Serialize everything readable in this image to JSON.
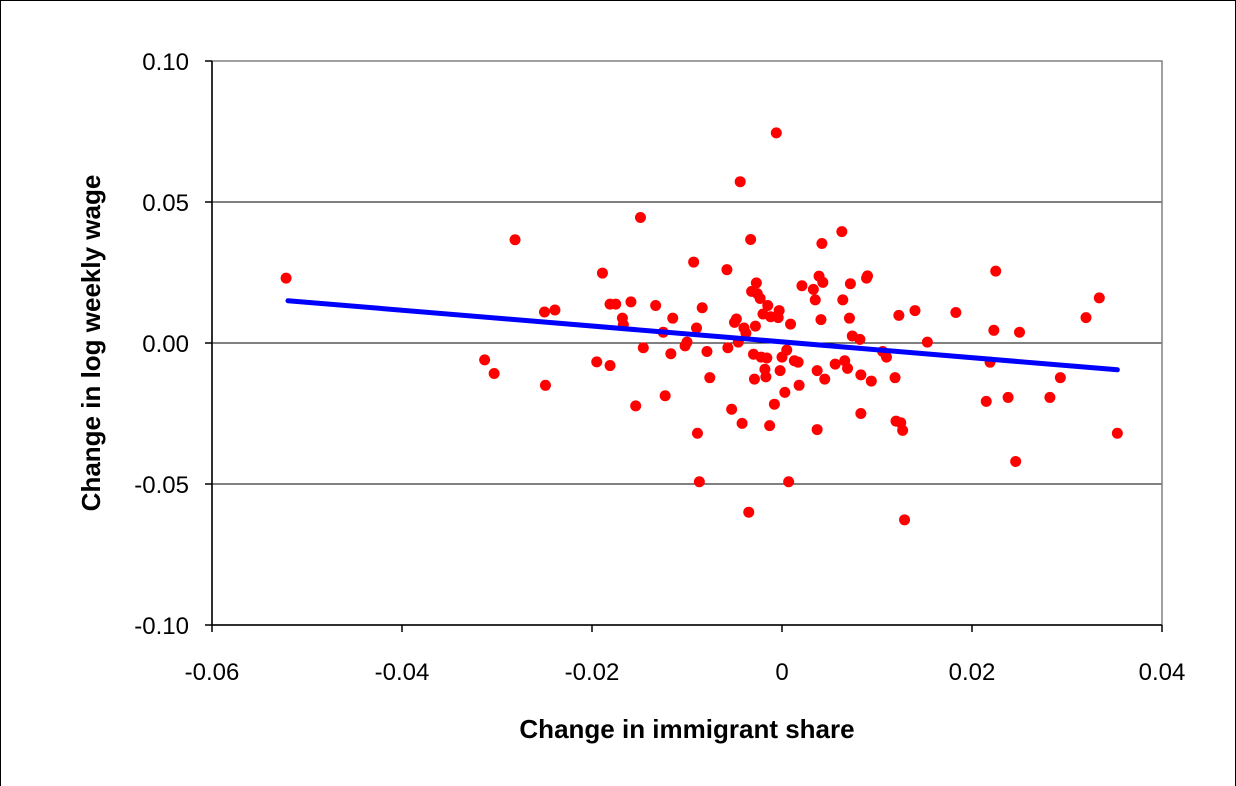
{
  "chart_data": {
    "type": "scatter",
    "title": "",
    "xlabel": "Change in immigrant share",
    "ylabel": "Change in log weekly wage",
    "xlim": [
      -0.06,
      0.04
    ],
    "ylim": [
      -0.1,
      0.1
    ],
    "x_ticks": [
      -0.06,
      -0.04,
      -0.02,
      0,
      0.02,
      0.04
    ],
    "x_tick_labels": [
      "-0.06",
      "-0.04",
      "-0.02",
      "0",
      "0.02",
      "0.04"
    ],
    "y_ticks": [
      -0.1,
      -0.05,
      0.0,
      0.05,
      0.1
    ],
    "y_tick_labels": [
      "-0.10",
      "-0.05",
      "0.00",
      "0.05",
      "0.10"
    ],
    "grid": "horizontal",
    "legend": "none",
    "colors": {
      "points": "#ff0000",
      "fit_line": "#0000ff",
      "grid": "#000000"
    },
    "fit_line": {
      "x": [
        -0.052,
        0.0353
      ],
      "y": [
        0.015,
        -0.0095
      ]
    },
    "points": [
      [
        -0.0522,
        0.023
      ],
      [
        -0.0313,
        -0.006
      ],
      [
        -0.0303,
        -0.0108
      ],
      [
        -0.0281,
        0.0366
      ],
      [
        -0.025,
        0.011
      ],
      [
        -0.0249,
        -0.015
      ],
      [
        -0.0239,
        0.0117
      ],
      [
        -0.0195,
        -0.0067
      ],
      [
        -0.0189,
        0.0248
      ],
      [
        -0.0181,
        -0.008
      ],
      [
        -0.0181,
        0.0138
      ],
      [
        -0.0175,
        0.0138
      ],
      [
        -0.0168,
        0.0088
      ],
      [
        -0.0167,
        0.0065
      ],
      [
        -0.0159,
        0.0146
      ],
      [
        -0.0154,
        -0.0223
      ],
      [
        -0.0149,
        0.0445
      ],
      [
        -0.0146,
        -0.0017
      ],
      [
        -0.0133,
        0.0133
      ],
      [
        -0.0125,
        0.0038
      ],
      [
        -0.0123,
        -0.0187
      ],
      [
        -0.0117,
        -0.0038
      ],
      [
        -0.0115,
        0.0088
      ],
      [
        -0.0102,
        -0.001
      ],
      [
        -0.01,
        0.0003
      ],
      [
        -0.0093,
        0.0287
      ],
      [
        -0.009,
        0.0053
      ],
      [
        -0.0089,
        -0.032
      ],
      [
        -0.0087,
        -0.0492
      ],
      [
        -0.0084,
        0.0125
      ],
      [
        -0.0079,
        -0.003
      ],
      [
        -0.0076,
        -0.0123
      ],
      [
        -0.0058,
        0.026
      ],
      [
        -0.0057,
        -0.0017
      ],
      [
        -0.0053,
        -0.0235
      ],
      [
        -0.005,
        0.0073
      ],
      [
        -0.0048,
        0.0085
      ],
      [
        -0.0046,
        0.0003
      ],
      [
        -0.0044,
        0.0572
      ],
      [
        -0.0042,
        -0.0285
      ],
      [
        -0.004,
        0.0053
      ],
      [
        -0.0038,
        0.0035
      ],
      [
        -0.0035,
        -0.06
      ],
      [
        -0.0033,
        0.0367
      ],
      [
        -0.0032,
        0.0183
      ],
      [
        -0.003,
        -0.004
      ],
      [
        -0.0029,
        -0.0128
      ],
      [
        -0.0028,
        0.006
      ],
      [
        -0.0027,
        0.0213
      ],
      [
        -0.0026,
        0.0175
      ],
      [
        -0.0023,
        0.0158
      ],
      [
        -0.0022,
        -0.005
      ],
      [
        -0.002,
        0.0103
      ],
      [
        -0.0018,
        -0.0093
      ],
      [
        -0.0017,
        -0.012
      ],
      [
        -0.0016,
        -0.0053
      ],
      [
        -0.0015,
        0.0133
      ],
      [
        -0.0013,
        -0.0293
      ],
      [
        -0.0012,
        0.0093
      ],
      [
        -0.0008,
        -0.0217
      ],
      [
        -0.0006,
        0.0745
      ],
      [
        -0.0004,
        0.009
      ],
      [
        -0.0003,
        0.0115
      ],
      [
        -0.0002,
        -0.0098
      ],
      [
        0.0,
        -0.005
      ],
      [
        0.0003,
        -0.0175
      ],
      [
        0.0005,
        -0.0025
      ],
      [
        0.0007,
        -0.0492
      ],
      [
        0.0009,
        0.0067
      ],
      [
        0.0013,
        -0.0063
      ],
      [
        0.0017,
        -0.0068
      ],
      [
        0.0018,
        -0.015
      ],
      [
        0.0021,
        0.0203
      ],
      [
        0.0033,
        0.019
      ],
      [
        0.0035,
        0.0153
      ],
      [
        0.0037,
        -0.0098
      ],
      [
        0.0037,
        -0.0307
      ],
      [
        0.0039,
        0.0237
      ],
      [
        0.0041,
        0.0083
      ],
      [
        0.0042,
        0.0353
      ],
      [
        0.0043,
        0.0215
      ],
      [
        0.0045,
        -0.0128
      ],
      [
        0.0056,
        -0.0075
      ],
      [
        0.0063,
        0.0395
      ],
      [
        0.0064,
        0.0153
      ],
      [
        0.0066,
        -0.0063
      ],
      [
        0.0069,
        -0.009
      ],
      [
        0.0071,
        0.0088
      ],
      [
        0.0072,
        0.021
      ],
      [
        0.0074,
        0.0025
      ],
      [
        0.0082,
        0.0013
      ],
      [
        0.0083,
        -0.0113
      ],
      [
        0.0083,
        -0.025
      ],
      [
        0.0089,
        0.023
      ],
      [
        0.009,
        0.0238
      ],
      [
        0.0094,
        -0.0135
      ],
      [
        0.0106,
        -0.003
      ],
      [
        0.011,
        -0.005
      ],
      [
        0.0119,
        -0.0123
      ],
      [
        0.012,
        -0.0277
      ],
      [
        0.0123,
        0.0098
      ],
      [
        0.0125,
        -0.0283
      ],
      [
        0.0127,
        -0.031
      ],
      [
        0.0129,
        -0.0627
      ],
      [
        0.014,
        0.0115
      ],
      [
        0.0153,
        0.0003
      ],
      [
        0.0183,
        0.0108
      ],
      [
        0.0215,
        -0.0207
      ],
      [
        0.0219,
        -0.0068
      ],
      [
        0.0223,
        0.0045
      ],
      [
        0.0225,
        0.0255
      ],
      [
        0.0238,
        -0.0193
      ],
      [
        0.0246,
        -0.042
      ],
      [
        0.025,
        0.0038
      ],
      [
        0.0282,
        -0.0193
      ],
      [
        0.0293,
        -0.0123
      ],
      [
        0.032,
        0.009
      ],
      [
        0.0334,
        0.016
      ],
      [
        0.0353,
        -0.032
      ]
    ]
  }
}
